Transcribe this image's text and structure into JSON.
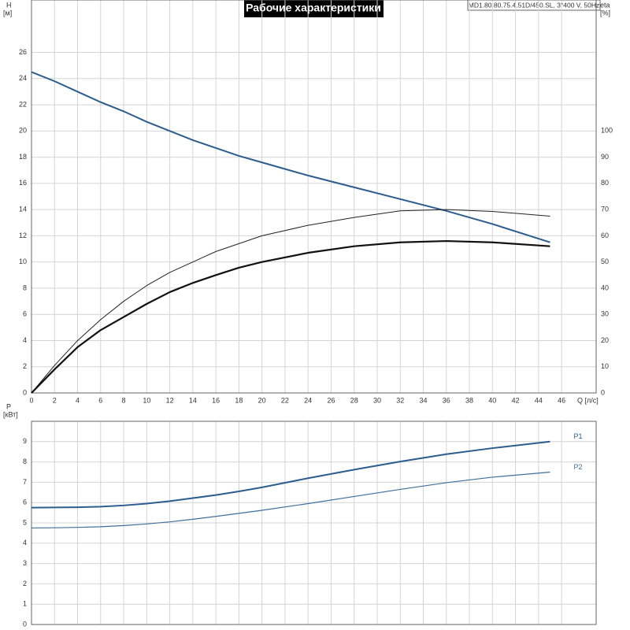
{
  "title": "Рабочие характеристики",
  "model": "MD1.80.80.75.4.51D/450.SL, 3*400 V, 50Hz",
  "chart_data": [
    {
      "type": "line",
      "y_label": "H",
      "y_unit": "[м]",
      "y2_label": "eta",
      "y2_unit": "[%]",
      "x_label": "Q [л/с]",
      "x": [
        0,
        2,
        4,
        6,
        8,
        10,
        12,
        14,
        16,
        18,
        20,
        24,
        28,
        32,
        36,
        40,
        45
      ],
      "xlim": [
        0,
        49
      ],
      "xticks": [
        0,
        2,
        4,
        6,
        8,
        10,
        12,
        14,
        16,
        18,
        20,
        22,
        24,
        26,
        28,
        30,
        32,
        34,
        36,
        38,
        40,
        42,
        44,
        46
      ],
      "ylim": [
        0,
        30
      ],
      "yticks": [
        0,
        2,
        4,
        6,
        8,
        10,
        12,
        14,
        16,
        18,
        20,
        22,
        24,
        26
      ],
      "y2lim": [
        0,
        150
      ],
      "y2ticks": [
        0,
        10,
        20,
        30,
        40,
        50,
        60,
        70,
        80,
        90,
        100
      ],
      "grid": true,
      "series": [
        {
          "color": "#2b5d8e",
          "width": 2,
          "values": [
            24.5,
            23.8,
            23.0,
            22.2,
            21.5,
            20.7,
            20.0,
            19.3,
            18.7,
            18.1,
            17.6,
            16.6,
            15.7,
            14.8,
            13.9,
            12.9,
            11.5
          ]
        },
        {
          "color": "#222222",
          "width": 1,
          "axis": "y2",
          "values": [
            0,
            10.5,
            20,
            28,
            35,
            41,
            46,
            50,
            54,
            57,
            60,
            64,
            67,
            69.5,
            70,
            69.3,
            67.5
          ]
        },
        {
          "color": "#111111",
          "width": 2.2,
          "axis": "y2",
          "values": [
            0,
            9,
            17.5,
            24,
            29,
            34,
            38.5,
            42,
            45,
            47.8,
            50,
            53.5,
            56,
            57.5,
            58,
            57.5,
            56
          ]
        }
      ]
    },
    {
      "type": "line",
      "y_label": "P",
      "y_unit": "[кВт]",
      "x": [
        0,
        2,
        4,
        6,
        8,
        10,
        12,
        14,
        16,
        18,
        20,
        24,
        28,
        32,
        36,
        40,
        45
      ],
      "xlim": [
        0,
        49
      ],
      "ylim": [
        0,
        10
      ],
      "yticks": [
        0,
        1,
        2,
        3,
        4,
        5,
        6,
        7,
        8,
        9
      ],
      "grid": true,
      "series": [
        {
          "name": "P1",
          "color": "#2b5d8e",
          "width": 2,
          "values": [
            5.75,
            5.76,
            5.77,
            5.8,
            5.86,
            5.95,
            6.07,
            6.22,
            6.37,
            6.55,
            6.75,
            7.2,
            7.62,
            8.02,
            8.38,
            8.68,
            9.0
          ]
        },
        {
          "name": "P2",
          "color": "#3f6f9c",
          "width": 1.2,
          "values": [
            4.75,
            4.76,
            4.78,
            4.81,
            4.87,
            4.95,
            5.05,
            5.18,
            5.32,
            5.47,
            5.62,
            5.95,
            6.3,
            6.65,
            6.98,
            7.25,
            7.5
          ]
        }
      ]
    }
  ]
}
